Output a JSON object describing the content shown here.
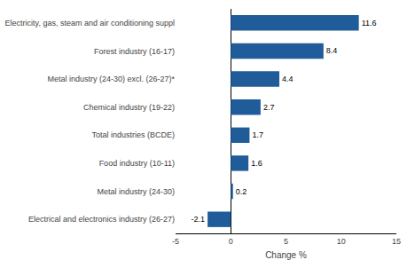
{
  "chart_data": {
    "type": "bar",
    "orientation": "horizontal",
    "categories": [
      "Electrical and electronics industry (26-27)",
      "Metal industry (24-30)",
      "Food industry (10-11)",
      "Total industries (BCDE)",
      "Chemical industry (19-22)",
      "Metal industry (24-30) excl. (26-27)*",
      "Forest industry (16-17)",
      "Electricity, gas, steam and air conditioning suppl"
    ],
    "values": [
      -2.1,
      0.2,
      1.6,
      1.7,
      2.7,
      4.4,
      8.4,
      11.6
    ],
    "color": "#1F5C99",
    "xlabel": "Change %",
    "xlim": [
      -5,
      15
    ],
    "xticks": [
      -5,
      0,
      5,
      10,
      15
    ],
    "data_labels": true,
    "grid": false
  }
}
